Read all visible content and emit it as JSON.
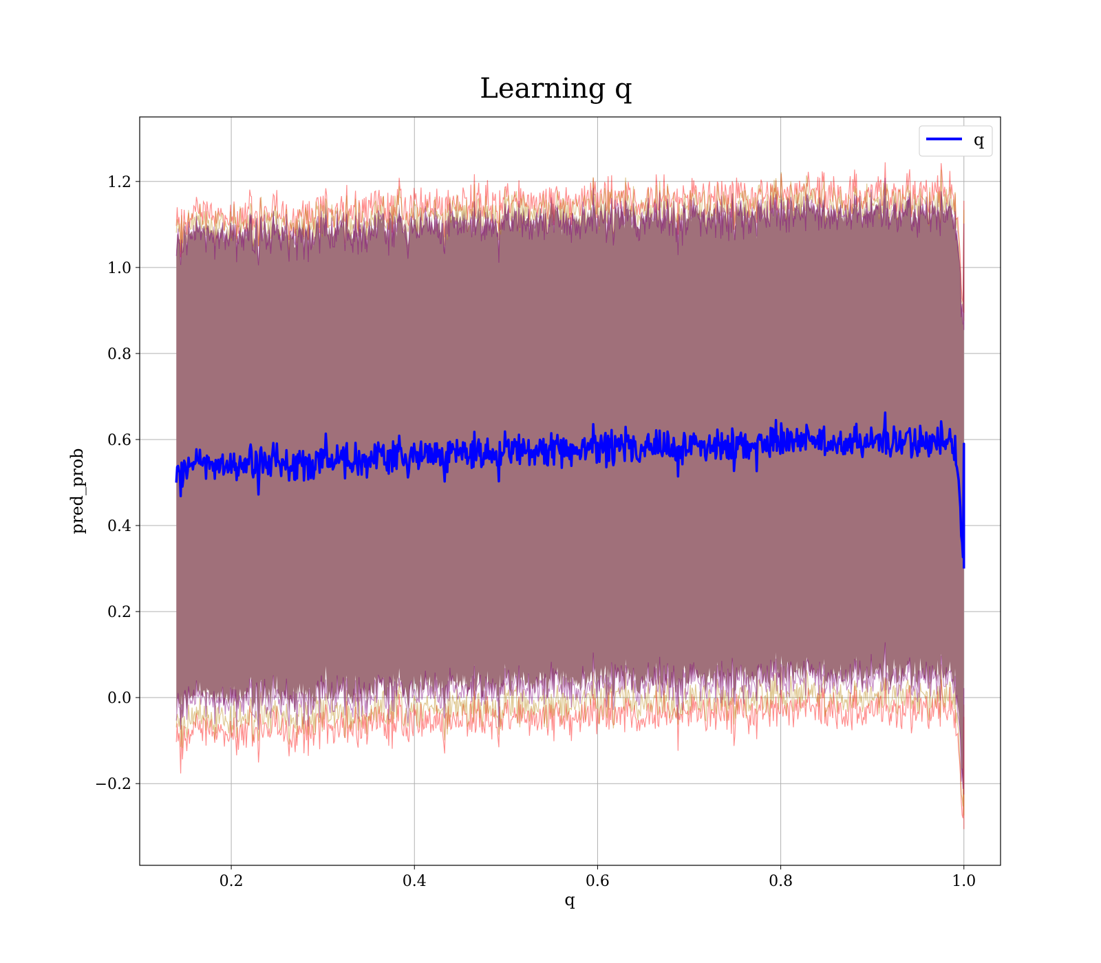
{
  "chart_data": {
    "type": "line",
    "title": "Learning q",
    "xlabel": "q",
    "ylabel": "pred_prob",
    "xlim": [
      0.1,
      1.04
    ],
    "ylim": [
      -0.39,
      1.35
    ],
    "x_ticks": [
      0.2,
      0.4,
      0.6,
      0.8,
      1.0
    ],
    "x_tick_labels": [
      "0.2",
      "0.4",
      "0.6",
      "0.8",
      "1.0"
    ],
    "y_ticks": [
      -0.2,
      0.0,
      0.2,
      0.4,
      0.6,
      0.8,
      1.0,
      1.2
    ],
    "y_tick_labels": [
      "−0.2",
      "0.0",
      "0.2",
      "0.4",
      "0.6",
      "0.8",
      "1.0",
      "1.2"
    ],
    "grid": true,
    "legend": {
      "position": "top-right",
      "entries": [
        "q"
      ]
    },
    "series": [
      {
        "name": "q",
        "color": "#0000ff",
        "x": [
          0.14,
          0.15,
          0.16,
          0.18,
          0.2,
          0.22,
          0.25,
          0.28,
          0.3,
          0.35,
          0.4,
          0.45,
          0.5,
          0.55,
          0.6,
          0.65,
          0.7,
          0.75,
          0.8,
          0.85,
          0.9,
          0.95,
          0.99,
          1.0
        ],
        "y": [
          0.5,
          0.52,
          0.56,
          0.53,
          0.55,
          0.54,
          0.55,
          0.53,
          0.56,
          0.555,
          0.56,
          0.565,
          0.57,
          0.575,
          0.58,
          0.58,
          0.585,
          0.59,
          0.595,
          0.595,
          0.595,
          0.595,
          0.59,
          0.3
        ]
      }
    ],
    "bands": [
      {
        "layer": "outer",
        "color": "#ff0000",
        "upper": 1.16,
        "lower": -0.04
      },
      {
        "layer": "middle",
        "color": "#b8860b",
        "upper": 1.14,
        "lower": -0.01
      },
      {
        "layer": "inner",
        "color": "#800080",
        "upper": 1.11,
        "lower": 0.03
      }
    ]
  }
}
